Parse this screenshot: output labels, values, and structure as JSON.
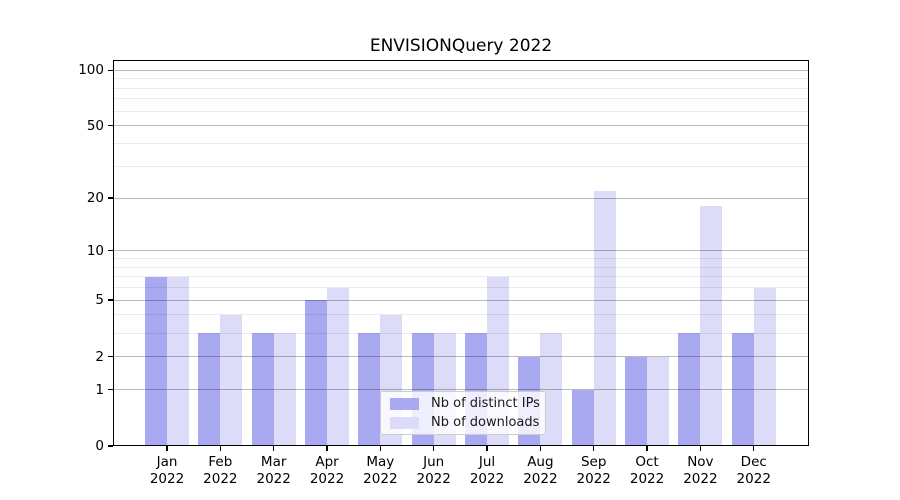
{
  "title": "ENVISIONQuery 2022",
  "chart_data": {
    "type": "bar",
    "title": "ENVISIONQuery 2022",
    "categories": [
      "Jan 2022",
      "Feb 2022",
      "Mar 2022",
      "Apr 2022",
      "May 2022",
      "Jun 2022",
      "Jul 2022",
      "Aug 2022",
      "Sep 2022",
      "Oct 2022",
      "Nov 2022",
      "Dec 2022"
    ],
    "series": [
      {
        "name": "Nb of distinct IPs",
        "color": "#a9a9f1",
        "values": [
          7,
          3,
          3,
          5,
          3,
          3,
          3,
          2,
          1,
          2,
          3,
          3
        ]
      },
      {
        "name": "Nb of downloads",
        "color": "#dcdcf8",
        "values": [
          7,
          4,
          3,
          6,
          4,
          3,
          7,
          3,
          22,
          2,
          18,
          6
        ]
      }
    ],
    "yscale": "symlog-log10(1+y)",
    "yticks": [
      0,
      1,
      2,
      5,
      10,
      20,
      50,
      100
    ],
    "ytick_labels": [
      "0",
      "1",
      "2",
      "5",
      "10",
      "20",
      "50",
      "100"
    ],
    "minor_yticks": [
      3,
      4,
      6,
      7,
      8,
      9,
      30,
      40,
      60,
      70,
      80,
      90
    ],
    "ylim": [
      0,
      114
    ],
    "xlabel": "",
    "ylabel": "",
    "grid": "horizontal",
    "legend_position": "inside-lower-center",
    "colors": {
      "axis": "#000000",
      "grid_major": "rgba(0,0,0,0.27)",
      "grid_minor": "rgba(0,0,0,0.08)",
      "background": "#ffffff",
      "text": "#000000"
    }
  }
}
